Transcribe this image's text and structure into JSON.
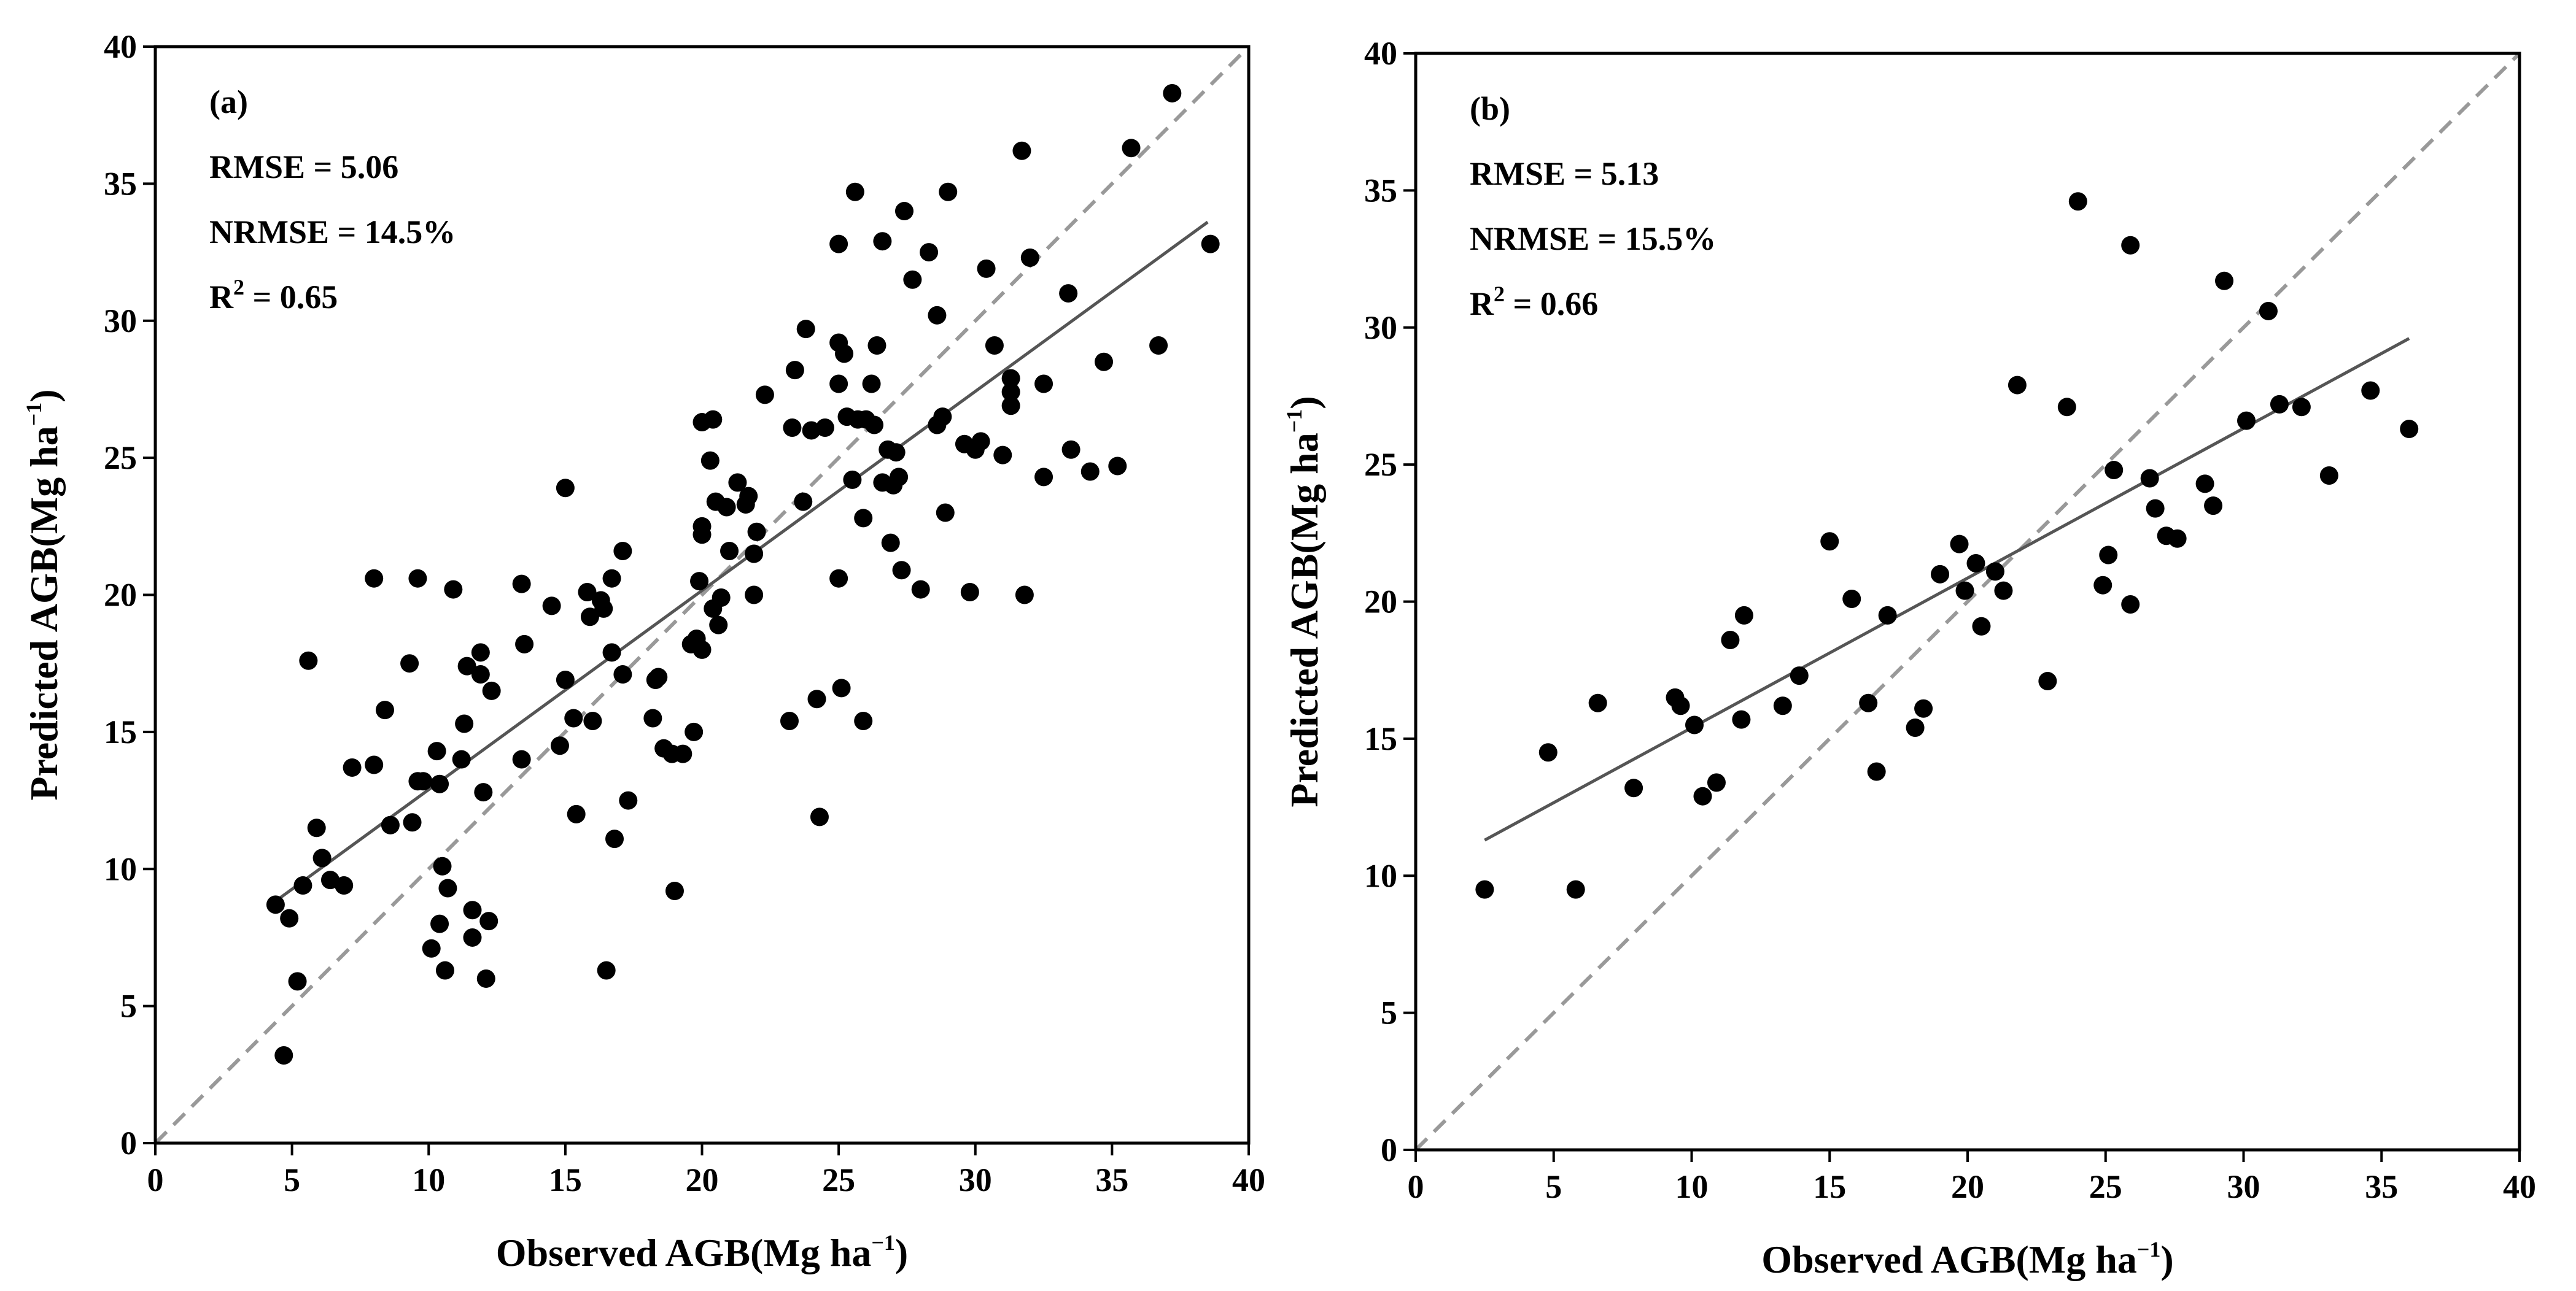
{
  "chart_data": [
    {
      "type": "scatter",
      "panel_label": "(a)",
      "xlabel_main": "Observed AGB(Mg ha",
      "xlabel_sup": "−1",
      "xlabel_close": ")",
      "ylabel_main": "Predicted AGB(Mg ha",
      "ylabel_sup": "−1",
      "ylabel_close": ")",
      "xlim": [
        0,
        40
      ],
      "ylim": [
        0,
        40
      ],
      "xticks": [
        0,
        5,
        10,
        15,
        20,
        25,
        30,
        35,
        40
      ],
      "yticks": [
        0,
        5,
        10,
        15,
        20,
        25,
        30,
        35,
        40
      ],
      "stats": {
        "rmse": "RMSE = 5.06",
        "nrmse": "NRMSE = 14.5%",
        "r2_main": "R",
        "r2_sup": "2",
        "r2_value": " = 0.65"
      },
      "identity_line": {
        "style": "dashed",
        "color": "#999999",
        "from": [
          0,
          0
        ],
        "to": [
          40,
          40
        ]
      },
      "fit_line": {
        "color": "#555555",
        "from": [
          4.5,
          8.9
        ],
        "to": [
          38.5,
          33.6
        ]
      },
      "marker_color": "#000000",
      "points": [
        [
          4.4,
          8.7
        ],
        [
          4.7,
          3.2
        ],
        [
          4.9,
          8.2
        ],
        [
          5.2,
          5.9
        ],
        [
          5.4,
          9.4
        ],
        [
          5.6,
          17.6
        ],
        [
          5.9,
          11.5
        ],
        [
          6.1,
          10.4
        ],
        [
          6.4,
          9.6
        ],
        [
          6.9,
          9.4
        ],
        [
          7.2,
          13.7
        ],
        [
          8.0,
          13.8
        ],
        [
          8.0,
          20.6
        ],
        [
          8.4,
          15.8
        ],
        [
          8.6,
          11.6
        ],
        [
          9.3,
          17.5
        ],
        [
          9.4,
          11.7
        ],
        [
          9.6,
          13.2
        ],
        [
          9.8,
          13.2
        ],
        [
          9.6,
          20.6
        ],
        [
          10.1,
          7.1
        ],
        [
          10.3,
          14.3
        ],
        [
          10.4,
          8.0
        ],
        [
          10.4,
          13.1
        ],
        [
          10.5,
          10.1
        ],
        [
          10.6,
          6.3
        ],
        [
          10.7,
          9.3
        ],
        [
          10.9,
          20.2
        ],
        [
          11.2,
          14.0
        ],
        [
          11.3,
          15.3
        ],
        [
          11.4,
          17.4
        ],
        [
          11.6,
          8.5
        ],
        [
          11.6,
          7.5
        ],
        [
          11.9,
          17.9
        ],
        [
          11.9,
          17.1
        ],
        [
          12.0,
          12.8
        ],
        [
          12.1,
          6.0
        ],
        [
          12.2,
          8.1
        ],
        [
          12.3,
          16.5
        ],
        [
          13.4,
          14.0
        ],
        [
          13.4,
          20.4
        ],
        [
          13.5,
          18.2
        ],
        [
          14.5,
          19.6
        ],
        [
          14.8,
          14.5
        ],
        [
          15.0,
          16.9
        ],
        [
          15.0,
          23.9
        ],
        [
          15.3,
          15.5
        ],
        [
          15.4,
          12.0
        ],
        [
          15.8,
          20.1
        ],
        [
          15.9,
          19.2
        ],
        [
          16.0,
          15.4
        ],
        [
          16.3,
          19.8
        ],
        [
          16.4,
          19.5
        ],
        [
          16.5,
          6.3
        ],
        [
          16.7,
          20.6
        ],
        [
          16.7,
          17.9
        ],
        [
          16.8,
          11.1
        ],
        [
          17.1,
          21.6
        ],
        [
          17.1,
          17.1
        ],
        [
          17.3,
          12.5
        ],
        [
          18.2,
          15.5
        ],
        [
          18.3,
          16.9
        ],
        [
          18.4,
          17.0
        ],
        [
          18.6,
          14.4
        ],
        [
          18.9,
          14.2
        ],
        [
          19.0,
          9.2
        ],
        [
          19.3,
          14.2
        ],
        [
          19.6,
          18.2
        ],
        [
          19.7,
          15.0
        ],
        [
          19.8,
          18.4
        ],
        [
          19.9,
          20.5
        ],
        [
          20.0,
          22.2
        ],
        [
          20.0,
          22.5
        ],
        [
          20.0,
          26.3
        ],
        [
          20.0,
          18.0
        ],
        [
          20.3,
          24.9
        ],
        [
          20.4,
          26.4
        ],
        [
          20.4,
          19.5
        ],
        [
          20.5,
          23.4
        ],
        [
          20.6,
          18.9
        ],
        [
          20.7,
          19.9
        ],
        [
          20.9,
          23.2
        ],
        [
          21.0,
          21.6
        ],
        [
          21.3,
          24.1
        ],
        [
          21.6,
          23.3
        ],
        [
          21.7,
          23.6
        ],
        [
          21.9,
          20.0
        ],
        [
          21.9,
          21.5
        ],
        [
          22.0,
          22.3
        ],
        [
          22.3,
          27.3
        ],
        [
          23.2,
          15.4
        ],
        [
          23.3,
          26.1
        ],
        [
          23.4,
          28.2
        ],
        [
          23.7,
          23.4
        ],
        [
          23.8,
          29.7
        ],
        [
          24.0,
          26.0
        ],
        [
          24.2,
          16.2
        ],
        [
          24.3,
          11.9
        ],
        [
          24.5,
          26.1
        ],
        [
          25.0,
          32.8
        ],
        [
          25.0,
          29.2
        ],
        [
          25.0,
          27.7
        ],
        [
          25.0,
          20.6
        ],
        [
          25.1,
          16.6
        ],
        [
          25.2,
          28.8
        ],
        [
          25.3,
          26.5
        ],
        [
          25.5,
          24.2
        ],
        [
          25.6,
          34.7
        ],
        [
          25.7,
          26.4
        ],
        [
          25.9,
          15.4
        ],
        [
          25.9,
          22.8
        ],
        [
          26.0,
          26.4
        ],
        [
          26.2,
          27.7
        ],
        [
          26.3,
          26.2
        ],
        [
          26.4,
          29.1
        ],
        [
          26.6,
          32.9
        ],
        [
          26.6,
          24.1
        ],
        [
          26.8,
          25.3
        ],
        [
          26.9,
          21.9
        ],
        [
          27.0,
          24.0
        ],
        [
          27.1,
          25.2
        ],
        [
          27.2,
          24.3
        ],
        [
          27.3,
          20.9
        ],
        [
          27.4,
          34.0
        ],
        [
          27.7,
          31.5
        ],
        [
          28.0,
          20.2
        ],
        [
          28.3,
          32.5
        ],
        [
          28.6,
          30.2
        ],
        [
          28.6,
          26.2
        ],
        [
          28.8,
          26.5
        ],
        [
          28.9,
          23.0
        ],
        [
          29.0,
          34.7
        ],
        [
          29.6,
          25.5
        ],
        [
          29.8,
          20.1
        ],
        [
          30.0,
          25.3
        ],
        [
          30.2,
          25.6
        ],
        [
          30.4,
          31.9
        ],
        [
          30.7,
          29.1
        ],
        [
          31.0,
          25.1
        ],
        [
          31.3,
          27.9
        ],
        [
          31.3,
          27.4
        ],
        [
          31.3,
          26.9
        ],
        [
          31.7,
          36.2
        ],
        [
          31.8,
          20.0
        ],
        [
          32.0,
          32.3
        ],
        [
          32.5,
          24.3
        ],
        [
          32.5,
          27.7
        ],
        [
          33.4,
          31.0
        ],
        [
          33.5,
          25.3
        ],
        [
          34.2,
          24.5
        ],
        [
          34.7,
          28.5
        ],
        [
          35.2,
          24.7
        ],
        [
          35.7,
          36.3
        ],
        [
          36.7,
          29.1
        ],
        [
          37.2,
          38.3
        ],
        [
          38.6,
          32.8
        ]
      ]
    },
    {
      "type": "scatter",
      "panel_label": "(b)",
      "xlabel_main": "Observed AGB(Mg ha",
      "xlabel_sup": "−1",
      "xlabel_close": ")",
      "ylabel_main": "Predicted AGB(Mg ha",
      "ylabel_sup": "−1",
      "ylabel_close": ")",
      "xlim": [
        0,
        40
      ],
      "ylim": [
        0,
        40
      ],
      "xticks": [
        0,
        5,
        10,
        15,
        20,
        25,
        30,
        35,
        40
      ],
      "yticks": [
        0,
        5,
        10,
        15,
        20,
        25,
        30,
        35,
        40
      ],
      "stats": {
        "rmse": "RMSE = 5.13",
        "nrmse": "NRMSE = 15.5%",
        "r2_main": "R",
        "r2_sup": "2",
        "r2_value": " = 0.66"
      },
      "identity_line": {
        "style": "dashed",
        "color": "#999999",
        "from": [
          0,
          0
        ],
        "to": [
          40,
          40
        ]
      },
      "fit_line": {
        "color": "#555555",
        "from": [
          2.5,
          11.3
        ],
        "to": [
          36.0,
          29.6
        ]
      },
      "marker_color": "#000000",
      "points": [
        [
          2.5,
          9.5
        ],
        [
          4.8,
          14.5
        ],
        [
          5.8,
          9.5
        ],
        [
          6.6,
          16.3
        ],
        [
          7.9,
          13.2
        ],
        [
          9.4,
          16.5
        ],
        [
          9.6,
          16.2
        ],
        [
          10.1,
          15.5
        ],
        [
          10.4,
          12.9
        ],
        [
          10.9,
          13.4
        ],
        [
          11.4,
          18.6
        ],
        [
          11.8,
          15.7
        ],
        [
          11.9,
          19.5
        ],
        [
          13.3,
          16.2
        ],
        [
          13.9,
          17.3
        ],
        [
          15.0,
          22.2
        ],
        [
          15.8,
          20.1
        ],
        [
          16.4,
          16.3
        ],
        [
          16.7,
          13.8
        ],
        [
          17.1,
          19.5
        ],
        [
          18.1,
          15.4
        ],
        [
          18.4,
          16.1
        ],
        [
          19.0,
          21.0
        ],
        [
          19.7,
          22.1
        ],
        [
          19.9,
          20.4
        ],
        [
          20.3,
          21.4
        ],
        [
          20.5,
          19.1
        ],
        [
          21.0,
          21.1
        ],
        [
          21.3,
          20.4
        ],
        [
          21.8,
          27.9
        ],
        [
          22.9,
          17.1
        ],
        [
          23.6,
          27.1
        ],
        [
          24.0,
          34.6
        ],
        [
          24.9,
          20.6
        ],
        [
          25.1,
          21.7
        ],
        [
          25.3,
          24.8
        ],
        [
          25.9,
          19.9
        ],
        [
          25.9,
          33.0
        ],
        [
          26.6,
          24.5
        ],
        [
          26.8,
          23.4
        ],
        [
          27.2,
          22.4
        ],
        [
          27.6,
          22.3
        ],
        [
          28.6,
          24.3
        ],
        [
          28.9,
          23.5
        ],
        [
          29.3,
          31.7
        ],
        [
          30.1,
          26.6
        ],
        [
          30.9,
          30.6
        ],
        [
          31.3,
          27.2
        ],
        [
          32.1,
          27.1
        ],
        [
          33.1,
          24.6
        ],
        [
          34.6,
          27.7
        ],
        [
          36.0,
          26.3
        ]
      ]
    }
  ]
}
